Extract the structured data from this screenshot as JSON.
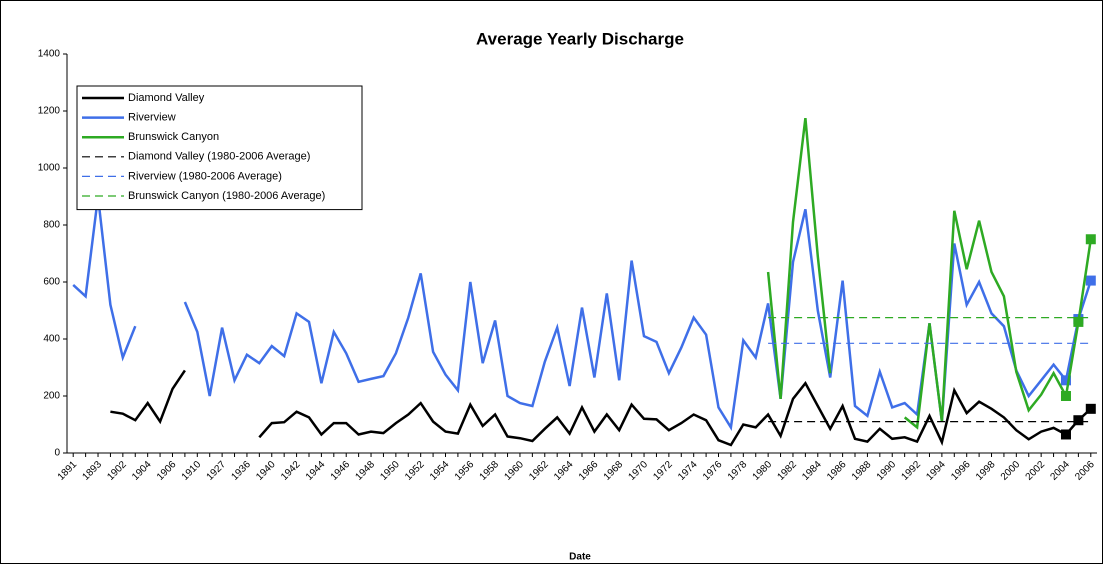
{
  "chart_data": {
    "type": "line",
    "title": "Average Yearly Discharge",
    "x_label": "Date",
    "categories": [
      "1891",
      null,
      "1893",
      null,
      "1902",
      null,
      "1904",
      null,
      "1906",
      null,
      "1910",
      null,
      "1927",
      null,
      "1936",
      null,
      "1940",
      null,
      "1942",
      null,
      "1944",
      null,
      "1946",
      null,
      "1948",
      null,
      "1950",
      null,
      "1952",
      null,
      "1954",
      null,
      "1956",
      null,
      "1958",
      null,
      "1960",
      null,
      "1962",
      null,
      "1964",
      null,
      "1966",
      null,
      "1968",
      null,
      "1970",
      null,
      "1972",
      null,
      "1974",
      null,
      "1976",
      null,
      "1978",
      null,
      "1980",
      null,
      "1982",
      null,
      "1984",
      null,
      "1986",
      null,
      "1988",
      null,
      "1990",
      null,
      "1992",
      null,
      "1994",
      null,
      "1996",
      null,
      "1998",
      null,
      "2000",
      null,
      "2002",
      null,
      "2004",
      null,
      "2006"
    ],
    "ylim": [
      0,
      1400
    ],
    "yticks": [
      0,
      200,
      400,
      600,
      800,
      1000,
      1200,
      1400
    ],
    "grid": false,
    "legend": "upper left",
    "series": [
      {
        "name": "Diamond Valley",
        "color": "#000000",
        "dashed": false,
        "values": [
          null,
          null,
          null,
          145,
          138,
          115,
          175,
          110,
          225,
          290,
          null,
          null,
          null,
          null,
          null,
          55,
          105,
          108,
          145,
          125,
          65,
          105,
          105,
          65,
          75,
          70,
          105,
          135,
          175,
          110,
          75,
          68,
          170,
          95,
          135,
          58,
          52,
          42,
          85,
          125,
          68,
          160,
          75,
          135,
          80,
          170,
          120,
          118,
          80,
          105,
          135,
          115,
          45,
          28,
          100,
          90,
          135,
          60,
          190,
          245,
          165,
          85,
          165,
          50,
          40,
          85,
          50,
          55,
          40,
          130,
          38,
          220,
          140,
          180,
          155,
          125,
          80,
          48,
          75,
          88,
          65,
          115,
          155
        ]
      },
      {
        "name": "Riverview",
        "color": "#3f6fe8",
        "dashed": false,
        "values": [
          590,
          550,
          900,
          520,
          335,
          445,
          null,
          null,
          null,
          530,
          425,
          200,
          440,
          255,
          345,
          315,
          375,
          340,
          490,
          460,
          245,
          425,
          350,
          250,
          260,
          270,
          350,
          475,
          630,
          355,
          275,
          220,
          600,
          315,
          465,
          200,
          175,
          165,
          320,
          440,
          235,
          510,
          265,
          560,
          255,
          675,
          410,
          390,
          280,
          370,
          475,
          415,
          160,
          90,
          395,
          335,
          525,
          190,
          670,
          855,
          500,
          265,
          605,
          165,
          130,
          285,
          160,
          175,
          135,
          455,
          110,
          735,
          520,
          600,
          490,
          445,
          290,
          200,
          255,
          310,
          255,
          470,
          605
        ]
      },
      {
        "name": "Brunswick Canyon",
        "color": "#2eaa23",
        "dashed": false,
        "values": [
          null,
          null,
          null,
          null,
          null,
          null,
          null,
          null,
          null,
          null,
          null,
          null,
          null,
          null,
          null,
          null,
          null,
          null,
          null,
          null,
          null,
          null,
          null,
          null,
          null,
          null,
          null,
          null,
          null,
          null,
          null,
          null,
          null,
          null,
          null,
          null,
          null,
          null,
          null,
          null,
          null,
          null,
          null,
          null,
          null,
          null,
          null,
          null,
          null,
          null,
          null,
          null,
          null,
          null,
          null,
          null,
          635,
          190,
          810,
          1175,
          690,
          280,
          null,
          null,
          null,
          null,
          null,
          125,
          90,
          455,
          110,
          850,
          645,
          815,
          635,
          550,
          285,
          150,
          205,
          280,
          200,
          460,
          750
        ]
      },
      {
        "name": "Diamond Valley (1980-2006 Average)",
        "color": "#000000",
        "dashed": true,
        "values": [
          null,
          null,
          null,
          null,
          null,
          null,
          null,
          null,
          null,
          null,
          null,
          null,
          null,
          null,
          null,
          null,
          null,
          null,
          null,
          null,
          null,
          null,
          null,
          null,
          null,
          null,
          null,
          null,
          null,
          null,
          null,
          null,
          null,
          null,
          null,
          null,
          null,
          null,
          null,
          null,
          null,
          null,
          null,
          null,
          null,
          null,
          null,
          null,
          null,
          null,
          null,
          null,
          null,
          null,
          null,
          null,
          110,
          110,
          110,
          110,
          110,
          110,
          110,
          110,
          110,
          110,
          110,
          110,
          110,
          110,
          110,
          110,
          110,
          110,
          110,
          110,
          110,
          110,
          110,
          110,
          110,
          110,
          110
        ]
      },
      {
        "name": "Riverview (1980-2006 Average)",
        "color": "#3f6fe8",
        "dashed": true,
        "values": [
          null,
          null,
          null,
          null,
          null,
          null,
          null,
          null,
          null,
          null,
          null,
          null,
          null,
          null,
          null,
          null,
          null,
          null,
          null,
          null,
          null,
          null,
          null,
          null,
          null,
          null,
          null,
          null,
          null,
          null,
          null,
          null,
          null,
          null,
          null,
          null,
          null,
          null,
          null,
          null,
          null,
          null,
          null,
          null,
          null,
          null,
          null,
          null,
          null,
          null,
          null,
          null,
          null,
          null,
          null,
          null,
          385,
          385,
          385,
          385,
          385,
          385,
          385,
          385,
          385,
          385,
          385,
          385,
          385,
          385,
          385,
          385,
          385,
          385,
          385,
          385,
          385,
          385,
          385,
          385,
          385,
          385,
          385
        ]
      },
      {
        "name": "Brunswick Canyon (1980-2006 Average)",
        "color": "#2eaa23",
        "dashed": true,
        "values": [
          null,
          null,
          null,
          null,
          null,
          null,
          null,
          null,
          null,
          null,
          null,
          null,
          null,
          null,
          null,
          null,
          null,
          null,
          null,
          null,
          null,
          null,
          null,
          null,
          null,
          null,
          null,
          null,
          null,
          null,
          null,
          null,
          null,
          null,
          null,
          null,
          null,
          null,
          null,
          null,
          null,
          null,
          null,
          null,
          null,
          null,
          null,
          null,
          null,
          null,
          null,
          null,
          null,
          null,
          null,
          null,
          475,
          475,
          475,
          475,
          475,
          475,
          475,
          475,
          475,
          475,
          475,
          475,
          475,
          475,
          475,
          475,
          475,
          475,
          475,
          475,
          475,
          475,
          475,
          475,
          475,
          475,
          475
        ]
      }
    ]
  }
}
